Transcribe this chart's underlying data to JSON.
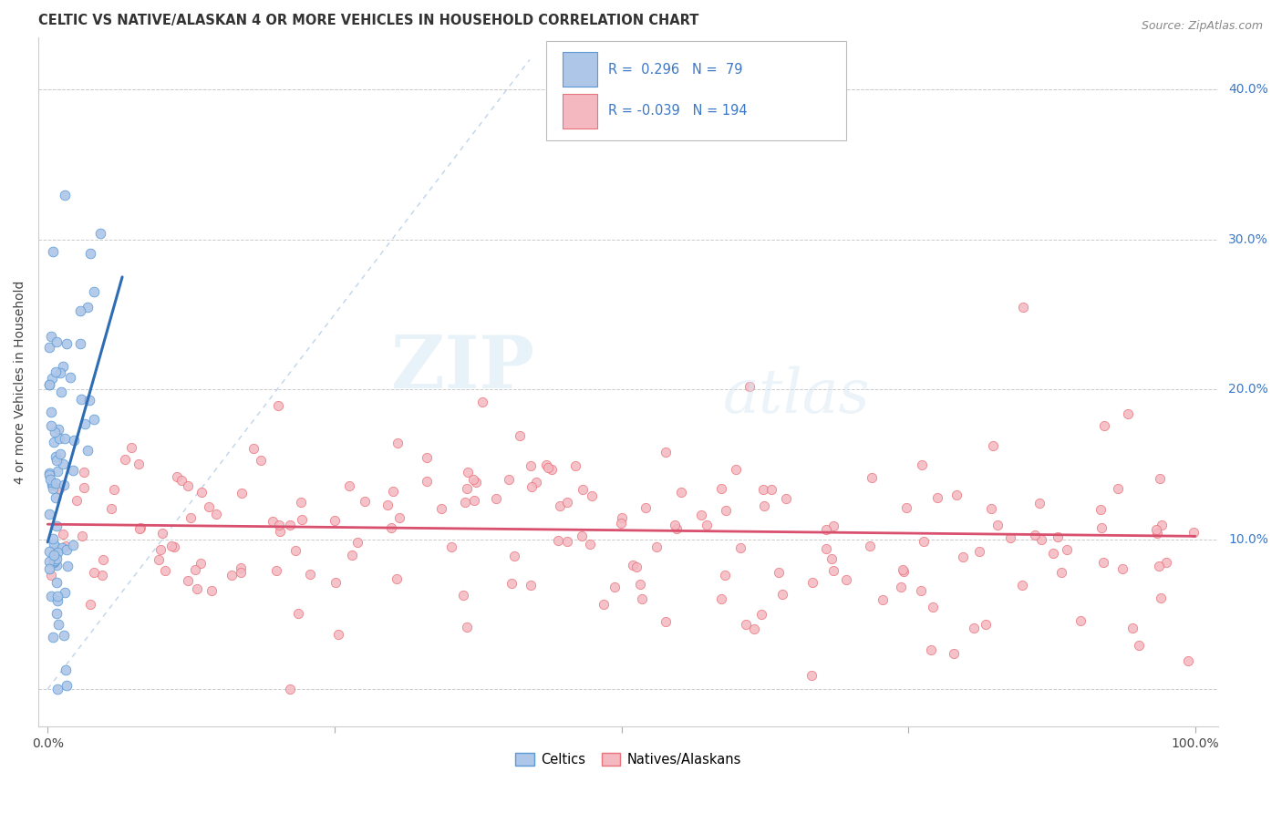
{
  "title": "CELTIC VS NATIVE/ALASKAN 4 OR MORE VEHICLES IN HOUSEHOLD CORRELATION CHART",
  "source": "Source: ZipAtlas.com",
  "ylabel": "4 or more Vehicles in Household",
  "xlim": [
    0.0,
    1.0
  ],
  "ylim": [
    0.0,
    0.42
  ],
  "watermark_zip": "ZIP",
  "watermark_atlas": "atlas",
  "legend_text1": "R =  0.296  N =  79",
  "legend_text2": "R = -0.039  N = 194",
  "celtics_color": "#aec6e8",
  "celtics_edge": "#5b9bd5",
  "natives_color": "#f4b8c1",
  "natives_edge": "#e8737a",
  "trendline_celtic_color": "#2e6db4",
  "trendline_native_color": "#d94f6e",
  "diagonal_color": "#b8cfe8",
  "background_color": "#ffffff",
  "right_label_color": "#3c78c8",
  "title_color": "#333333",
  "source_color": "#888888"
}
